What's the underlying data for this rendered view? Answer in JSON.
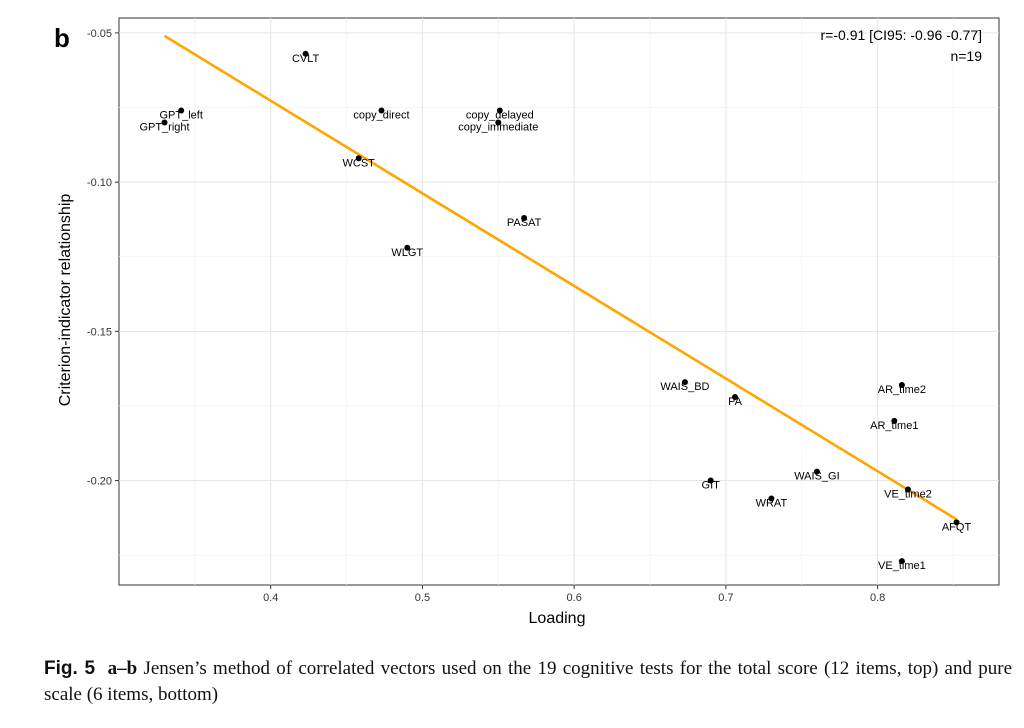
{
  "panel_label": "b",
  "chart_data": {
    "type": "scatter",
    "xlabel": "Loading",
    "ylabel": "Criterion-indicator relationship",
    "xlim": [
      0.3,
      0.88
    ],
    "ylim": [
      -0.235,
      -0.045
    ],
    "x_ticks": [
      0.4,
      0.5,
      0.6,
      0.7,
      0.8
    ],
    "x_tick_labels": [
      "0.4",
      "0.5",
      "0.6",
      "0.7",
      "0.8"
    ],
    "y_ticks": [
      -0.05,
      -0.1,
      -0.15,
      -0.2
    ],
    "y_tick_labels": [
      "-0.05",
      "-0.10",
      "-0.15",
      "-0.20"
    ],
    "grid": true,
    "points": [
      {
        "label": "CVLT",
        "x": 0.423,
        "y": -0.057
      },
      {
        "label": "GPT_left",
        "x": 0.341,
        "y": -0.076
      },
      {
        "label": "GPT_right",
        "x": 0.33,
        "y": -0.08
      },
      {
        "label": "copy_direct",
        "x": 0.473,
        "y": -0.076
      },
      {
        "label": "copy_delayed",
        "x": 0.551,
        "y": -0.076
      },
      {
        "label": "copy_immediate",
        "x": 0.55,
        "y": -0.08
      },
      {
        "label": "WCST",
        "x": 0.458,
        "y": -0.092
      },
      {
        "label": "PASAT",
        "x": 0.567,
        "y": -0.112
      },
      {
        "label": "WLGT",
        "x": 0.49,
        "y": -0.122
      },
      {
        "label": "WAIS_BD",
        "x": 0.673,
        "y": -0.167
      },
      {
        "label": "PA",
        "x": 0.706,
        "y": -0.172
      },
      {
        "label": "AR_time2",
        "x": 0.816,
        "y": -0.168
      },
      {
        "label": "AR_time1",
        "x": 0.811,
        "y": -0.18
      },
      {
        "label": "GIT",
        "x": 0.69,
        "y": -0.2
      },
      {
        "label": "WAIS_GI",
        "x": 0.76,
        "y": -0.197
      },
      {
        "label": "WRAT",
        "x": 0.73,
        "y": -0.206
      },
      {
        "label": "VE_time2",
        "x": 0.82,
        "y": -0.203
      },
      {
        "label": "AFQT",
        "x": 0.852,
        "y": -0.214
      },
      {
        "label": "VE_time1",
        "x": 0.816,
        "y": -0.227
      }
    ],
    "regression_line": {
      "x": [
        0.33,
        0.852
      ],
      "y": [
        -0.051,
        -0.213
      ],
      "color": "#FFA500"
    },
    "annotations": [
      "r=-0.91 [CI95: -0.96 -0.77]",
      "n=19"
    ]
  },
  "caption": {
    "fig_num": "Fig. 5",
    "fig_ab": "a–b",
    "text": " Jensen’s method of correlated vectors used on the 19 cognitive tests for the total score (12 items, top) and pure scale (6 items, bottom)"
  }
}
